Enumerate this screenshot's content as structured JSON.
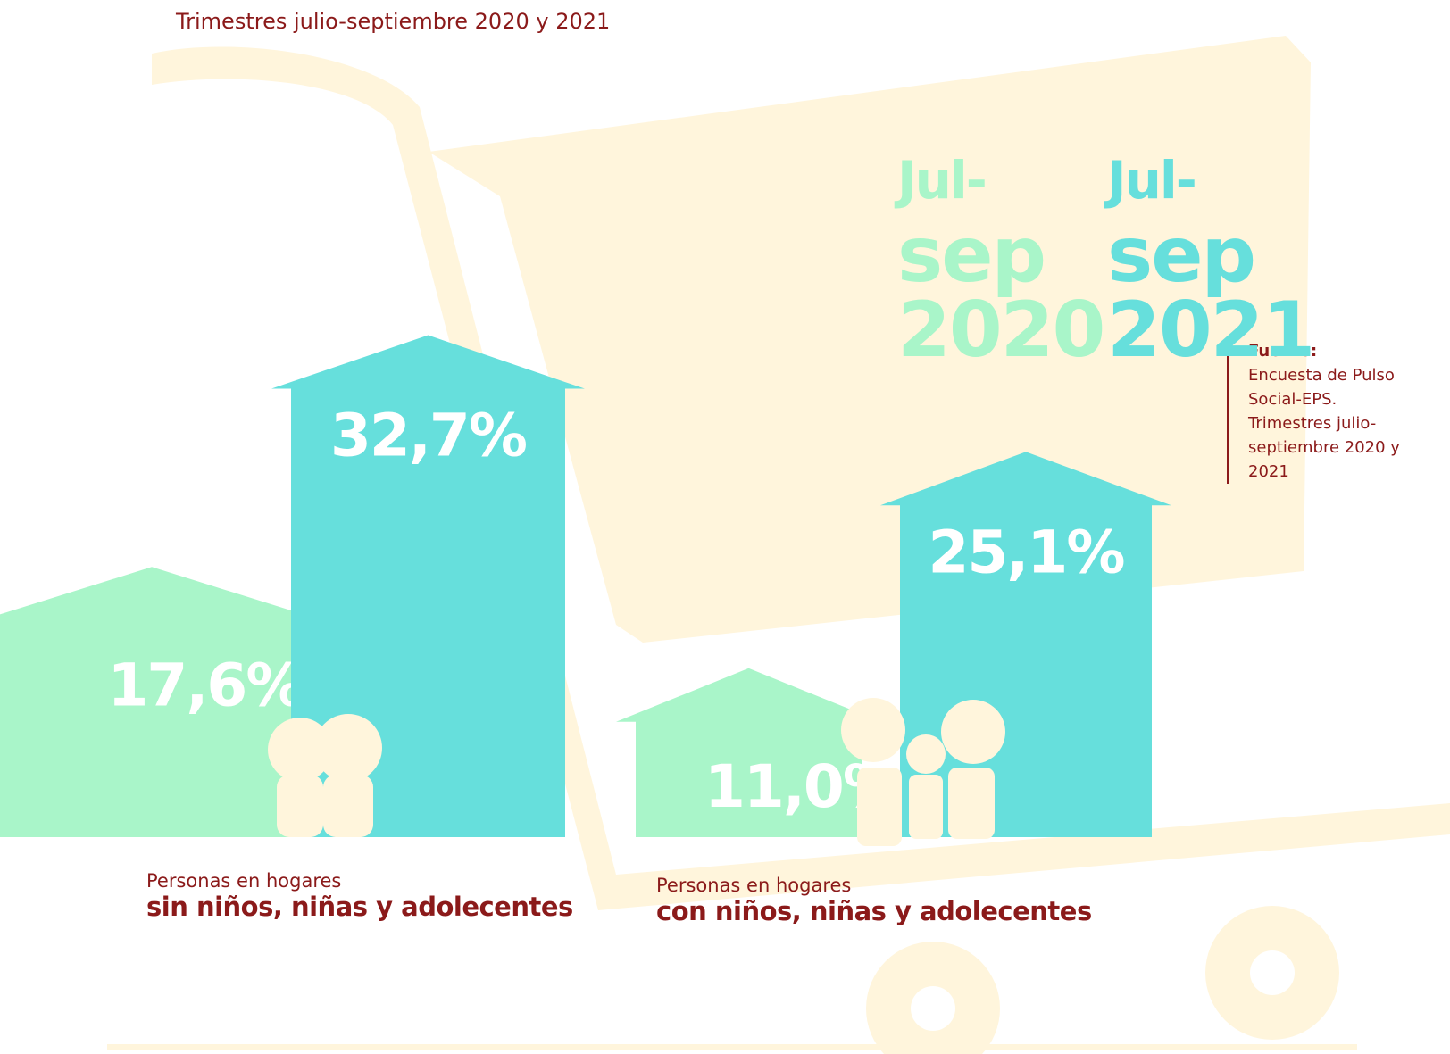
{
  "chart_data": {
    "type": "bar",
    "subtitle": "Trimestres julio-septiembre 2020 y 2021",
    "categories": [
      {
        "prefix": "Personas en hogares",
        "name": "sin niños, niñas y adolecentes"
      },
      {
        "prefix": "Personas en hogares",
        "name": "con niños, niñas y adolecentes"
      }
    ],
    "series": [
      {
        "name": "Jul-sep 2020",
        "color": "#a9f5c9",
        "values": [
          17.6,
          11.0
        ],
        "value_labels": [
          "17,6%",
          "11,0%"
        ]
      },
      {
        "name": "Jul-sep 2021",
        "color": "#66dfdc",
        "values": [
          32.7,
          25.1
        ],
        "value_labels": [
          "32,7%",
          "25,1%"
        ]
      }
    ],
    "source": {
      "label": "Fuente:",
      "text": "Encuesta de Pulso Social-EPS. Trimestres julio-septiembre 2020 y 2021"
    }
  }
}
